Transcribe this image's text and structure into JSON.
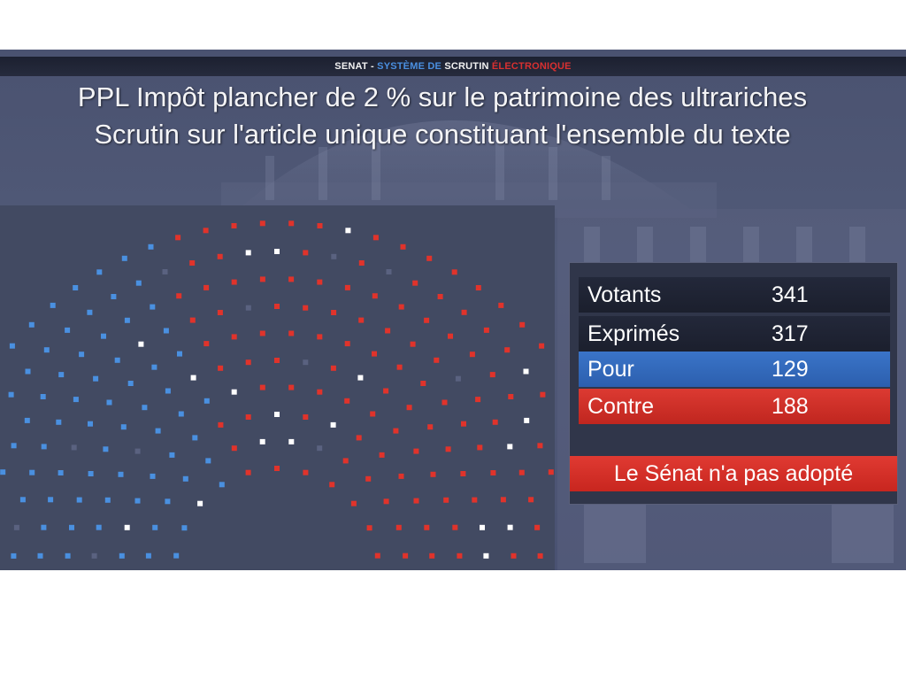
{
  "header": {
    "part1": "SENAT",
    "separator": " - ",
    "part2": "SYSTÈME DE",
    "part3": "SCRUTIN",
    "part4": "ÉLECTRONIQUE"
  },
  "title_line1": "PPL Impôt plancher de 2 % sur le patrimoine des ultrariches",
  "title_line2": "Scrutin sur l'article unique constituant l'ensemble du texte",
  "results": {
    "votants_label": "Votants",
    "votants_value": "341",
    "exprimes_label": "Exprimés",
    "exprimes_value": "317",
    "pour_label": "Pour",
    "pour_value": "129",
    "contre_label": "Contre",
    "contre_value": "188",
    "verdict": "Le Sénat n'a pas adopté"
  },
  "colors": {
    "pour": "#4a90e0",
    "contre": "#e0332b",
    "abstention": "#ffffff",
    "absent": "#5a6280"
  },
  "hemicycle": {
    "pour_count": 129,
    "contre_count": 188,
    "abstention_count": 24
  }
}
